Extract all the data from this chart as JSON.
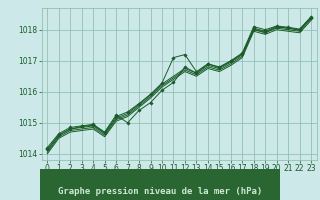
{
  "background_color": "#cce8e8",
  "grid_color": "#88bbaa",
  "line_color": "#1a5c28",
  "xlabel": "Graphe pression niveau de la mer (hPa)",
  "xlabel_fontsize": 6.5,
  "xlabel_bg": "#2a6632",
  "xlabel_fg": "#cce8d4",
  "ylim": [
    1013.8,
    1018.7
  ],
  "xlim": [
    -0.5,
    23.5
  ],
  "yticks": [
    1014,
    1015,
    1016,
    1017,
    1018
  ],
  "xticks": [
    0,
    1,
    2,
    3,
    4,
    5,
    6,
    7,
    8,
    9,
    10,
    11,
    12,
    13,
    14,
    15,
    16,
    17,
    18,
    19,
    20,
    21,
    22,
    23
  ],
  "tick_fontsize": 5.5,
  "series": [
    [
      1014.1,
      1014.6,
      1014.8,
      1014.85,
      1014.9,
      1014.65,
      1015.15,
      1015.3,
      1015.6,
      1015.9,
      1016.25,
      1016.5,
      1016.75,
      1016.6,
      1016.85,
      1016.75,
      1016.95,
      1017.2,
      1018.05,
      1017.95,
      1018.1,
      1018.05,
      1018.0,
      1018.4
    ],
    [
      1014.05,
      1014.55,
      1014.75,
      1014.8,
      1014.85,
      1014.6,
      1015.1,
      1015.25,
      1015.55,
      1015.85,
      1016.2,
      1016.45,
      1016.7,
      1016.55,
      1016.8,
      1016.7,
      1016.9,
      1017.15,
      1018.0,
      1017.9,
      1018.05,
      1018.0,
      1017.95,
      1018.35
    ],
    [
      1014.0,
      1014.5,
      1014.7,
      1014.75,
      1014.8,
      1014.55,
      1015.05,
      1015.2,
      1015.5,
      1015.8,
      1016.15,
      1016.4,
      1016.65,
      1016.5,
      1016.75,
      1016.65,
      1016.85,
      1017.1,
      1017.95,
      1017.85,
      1018.0,
      1017.95,
      1017.9,
      1018.3
    ],
    [
      1014.15,
      1014.6,
      1014.8,
      1014.88,
      1014.92,
      1014.68,
      1015.2,
      1015.35,
      1015.62,
      1015.92,
      1016.28,
      1017.1,
      1017.2,
      1016.65,
      1016.9,
      1016.8,
      1017.0,
      1017.25,
      1018.1,
      1018.0,
      1018.12,
      1018.08,
      1018.02,
      1018.42
    ],
    [
      1014.2,
      1014.65,
      1014.85,
      1014.9,
      1014.95,
      1014.7,
      1015.25,
      1015.0,
      1015.4,
      1015.65,
      1016.05,
      1016.3,
      1016.8,
      1016.6,
      1016.9,
      1016.78,
      1016.98,
      1017.22,
      1018.02,
      1017.92,
      1018.08,
      1018.05,
      1017.98,
      1018.38
    ]
  ],
  "marker_series": [
    3,
    4
  ],
  "marker": "D",
  "marker_size": 1.8
}
